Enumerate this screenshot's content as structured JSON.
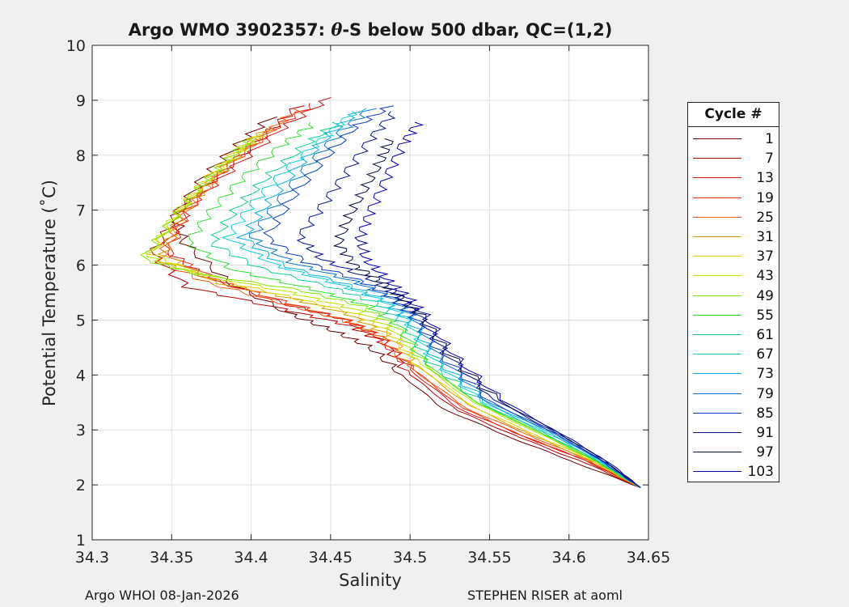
{
  "header": {
    "title_prefix": "Argo WMO 3902357: ",
    "title_theta": "θ",
    "title_suffix": "-S below 500 dbar,  QC=(1,2)"
  },
  "footer": {
    "left": "Argo WHOI 08-Jan-2026",
    "right": "STEPHEN RISER at aoml"
  },
  "legend": {
    "title": "Cycle #",
    "entries": [
      {
        "label": "1",
        "color": "#6b0000"
      },
      {
        "label": "7",
        "color": "#b20000"
      },
      {
        "label": "13",
        "color": "#d81010"
      },
      {
        "label": "19",
        "color": "#ee2a10"
      },
      {
        "label": "25",
        "color": "#f05a10"
      },
      {
        "label": "31",
        "color": "#d89a00"
      },
      {
        "label": "37",
        "color": "#e6d000"
      },
      {
        "label": "43",
        "color": "#b8e200"
      },
      {
        "label": "49",
        "color": "#7ee600"
      },
      {
        "label": "55",
        "color": "#30e030"
      },
      {
        "label": "61",
        "color": "#10d090"
      },
      {
        "label": "67",
        "color": "#10d0d8"
      },
      {
        "label": "73",
        "color": "#0ab0e0"
      },
      {
        "label": "79",
        "color": "#0a78d0"
      },
      {
        "label": "85",
        "color": "#0a3cc8"
      },
      {
        "label": "91",
        "color": "#06148c"
      },
      {
        "label": "97",
        "color": "#020a40"
      },
      {
        "label": "103",
        "color": "#0000b4"
      }
    ]
  },
  "chart_data": {
    "type": "line",
    "title": "Argo WMO 3902357: θ-S below 500 dbar,  QC=(1,2)",
    "xlabel": "Salinity",
    "ylabel": "Potential Temperature (˚C)",
    "xlim": [
      34.3,
      34.65
    ],
    "ylim": [
      1,
      10
    ],
    "xticks": [
      "34.3",
      "34.35",
      "34.4",
      "34.45",
      "34.5",
      "34.55",
      "34.6",
      "34.65"
    ],
    "yticks": [
      "1",
      "2",
      "3",
      "4",
      "5",
      "6",
      "7",
      "8",
      "9",
      "10"
    ],
    "grid": true,
    "legend_position": "outside-right",
    "series": [
      {
        "name": "1",
        "x": [
          34.413,
          34.392,
          34.37,
          34.352,
          34.358,
          34.385,
          34.425,
          34.452,
          34.475,
          34.495,
          34.52,
          34.56,
          34.6,
          34.645
        ],
        "y": [
          8.7,
          8.2,
          7.6,
          6.9,
          6.4,
          5.7,
          5.1,
          4.8,
          4.5,
          4.0,
          3.4,
          2.9,
          2.45,
          1.95
        ]
      },
      {
        "name": "7",
        "x": [
          34.43,
          34.41,
          34.382,
          34.355,
          34.338,
          34.36,
          34.42,
          34.462,
          34.483,
          34.5,
          34.53,
          34.57,
          34.61,
          34.645
        ],
        "y": [
          8.9,
          8.4,
          7.7,
          7.0,
          6.2,
          5.6,
          5.2,
          4.9,
          4.6,
          4.0,
          3.35,
          2.85,
          2.4,
          1.95
        ]
      },
      {
        "name": "13",
        "x": [
          34.45,
          34.42,
          34.39,
          34.362,
          34.345,
          34.37,
          34.42,
          34.46,
          34.48,
          34.5,
          34.53,
          34.57,
          34.61,
          34.645
        ],
        "y": [
          9.05,
          8.5,
          7.8,
          7.1,
          6.3,
          5.8,
          5.3,
          5.0,
          4.7,
          4.1,
          3.4,
          2.9,
          2.45,
          1.95
        ]
      },
      {
        "name": "19",
        "x": [
          34.44,
          34.415,
          34.385,
          34.36,
          34.348,
          34.38,
          34.425,
          34.46,
          34.482,
          34.502,
          34.533,
          34.57,
          34.61,
          34.645
        ],
        "y": [
          8.95,
          8.5,
          7.8,
          7.0,
          6.2,
          5.7,
          5.3,
          5.0,
          4.7,
          4.1,
          3.4,
          2.9,
          2.45,
          1.95
        ]
      },
      {
        "name": "25",
        "x": [
          34.43,
          34.41,
          34.38,
          34.358,
          34.342,
          34.37,
          34.42,
          34.458,
          34.48,
          34.502,
          34.535,
          34.575,
          34.612,
          34.645
        ],
        "y": [
          8.85,
          8.4,
          7.7,
          6.9,
          6.1,
          5.7,
          5.3,
          5.0,
          4.7,
          4.1,
          3.4,
          2.9,
          2.45,
          1.95
        ]
      },
      {
        "name": "31",
        "x": [
          34.41,
          34.395,
          34.375,
          34.355,
          34.345,
          34.375,
          34.425,
          34.462,
          34.485,
          34.505,
          34.537,
          34.577,
          34.613,
          34.645
        ],
        "y": [
          8.5,
          8.1,
          7.5,
          6.9,
          6.2,
          5.7,
          5.4,
          5.1,
          4.75,
          4.15,
          3.45,
          2.9,
          2.45,
          1.95
        ]
      },
      {
        "name": "37",
        "x": [
          34.405,
          34.388,
          34.37,
          34.352,
          34.338,
          34.37,
          34.42,
          34.462,
          34.486,
          34.506,
          34.538,
          34.578,
          34.614,
          34.645
        ],
        "y": [
          8.4,
          8.0,
          7.5,
          6.9,
          6.2,
          5.8,
          5.45,
          5.15,
          4.8,
          4.15,
          3.45,
          2.92,
          2.45,
          1.95
        ]
      },
      {
        "name": "43",
        "x": [
          34.405,
          34.39,
          34.37,
          34.352,
          34.335,
          34.365,
          34.425,
          34.465,
          34.488,
          34.507,
          34.54,
          34.58,
          34.615,
          34.645
        ],
        "y": [
          8.35,
          8.0,
          7.5,
          6.9,
          6.15,
          5.85,
          5.5,
          5.2,
          4.85,
          4.2,
          3.5,
          2.95,
          2.45,
          1.95
        ]
      },
      {
        "name": "49",
        "x": [
          34.4,
          34.385,
          34.368,
          34.35,
          34.332,
          34.365,
          34.43,
          34.47,
          34.49,
          34.509,
          34.542,
          34.582,
          34.616,
          34.645
        ],
        "y": [
          8.3,
          7.9,
          7.4,
          6.8,
          6.1,
          5.85,
          5.55,
          5.25,
          4.9,
          4.2,
          3.5,
          2.95,
          2.45,
          1.95
        ]
      },
      {
        "name": "55",
        "x": [
          34.44,
          34.42,
          34.395,
          34.375,
          34.36,
          34.39,
          34.44,
          34.475,
          34.493,
          34.51,
          34.542,
          34.582,
          34.616,
          34.645
        ],
        "y": [
          8.6,
          8.2,
          7.6,
          7.0,
          6.4,
          5.9,
          5.55,
          5.25,
          4.9,
          4.2,
          3.5,
          2.95,
          2.45,
          1.95
        ]
      },
      {
        "name": "61",
        "x": [
          34.455,
          34.435,
          34.41,
          34.39,
          34.375,
          34.405,
          34.45,
          34.48,
          34.496,
          34.512,
          34.544,
          34.584,
          34.617,
          34.645
        ],
        "y": [
          8.6,
          8.2,
          7.6,
          7.0,
          6.4,
          5.95,
          5.6,
          5.3,
          4.95,
          4.25,
          3.5,
          2.95,
          2.45,
          1.95
        ]
      },
      {
        "name": "67",
        "x": [
          34.465,
          34.445,
          34.42,
          34.4,
          34.385,
          34.415,
          34.455,
          34.483,
          34.498,
          34.514,
          34.546,
          34.586,
          34.618,
          34.645
        ],
        "y": [
          8.8,
          8.3,
          7.7,
          7.1,
          6.5,
          6.0,
          5.65,
          5.35,
          5.0,
          4.3,
          3.5,
          2.95,
          2.45,
          1.95
        ]
      },
      {
        "name": "73",
        "x": [
          34.47,
          34.45,
          34.43,
          34.41,
          34.395,
          34.42,
          34.46,
          34.485,
          34.5,
          34.516,
          34.548,
          34.588,
          34.619,
          34.645
        ],
        "y": [
          8.85,
          8.4,
          7.8,
          7.1,
          6.5,
          6.0,
          5.65,
          5.35,
          5.0,
          4.3,
          3.5,
          2.95,
          2.45,
          1.95
        ]
      },
      {
        "name": "79",
        "x": [
          34.475,
          34.455,
          34.435,
          34.415,
          34.4,
          34.425,
          34.465,
          34.488,
          34.502,
          34.518,
          34.55,
          34.59,
          34.62,
          34.645
        ],
        "y": [
          8.85,
          8.4,
          7.8,
          7.1,
          6.5,
          6.05,
          5.7,
          5.4,
          5.05,
          4.35,
          3.5,
          2.95,
          2.45,
          1.95
        ]
      },
      {
        "name": "85",
        "x": [
          34.488,
          34.465,
          34.445,
          34.425,
          34.41,
          34.435,
          34.47,
          34.49,
          34.503,
          34.52,
          34.552,
          34.59,
          34.62,
          34.645
        ],
        "y": [
          8.9,
          8.5,
          7.9,
          7.2,
          6.5,
          6.05,
          5.7,
          5.4,
          5.05,
          4.35,
          3.5,
          2.95,
          2.45,
          1.95
        ]
      },
      {
        "name": "91",
        "x": [
          34.49,
          34.475,
          34.46,
          34.445,
          34.43,
          34.445,
          34.475,
          34.492,
          34.505,
          34.522,
          34.553,
          34.592,
          34.621,
          34.645
        ],
        "y": [
          8.8,
          8.3,
          7.7,
          7.1,
          6.5,
          6.1,
          5.75,
          5.45,
          5.1,
          4.4,
          3.55,
          2.95,
          2.45,
          1.95
        ]
      },
      {
        "name": "97",
        "x": [
          34.488,
          34.482,
          34.472,
          34.462,
          34.455,
          34.465,
          34.482,
          34.495,
          34.507,
          34.524,
          34.555,
          34.593,
          34.622,
          34.645
        ],
        "y": [
          8.3,
          7.9,
          7.4,
          6.9,
          6.4,
          6.0,
          5.7,
          5.4,
          5.1,
          4.4,
          3.55,
          2.95,
          2.45,
          1.95
        ]
      },
      {
        "name": "103",
        "x": [
          34.505,
          34.495,
          34.485,
          34.475,
          34.468,
          34.472,
          34.485,
          34.497,
          34.509,
          34.526,
          34.557,
          34.594,
          34.623,
          34.645
        ],
        "y": [
          8.6,
          8.2,
          7.6,
          7.0,
          6.5,
          6.1,
          5.75,
          5.45,
          5.1,
          4.4,
          3.55,
          2.95,
          2.45,
          1.95
        ]
      }
    ]
  }
}
